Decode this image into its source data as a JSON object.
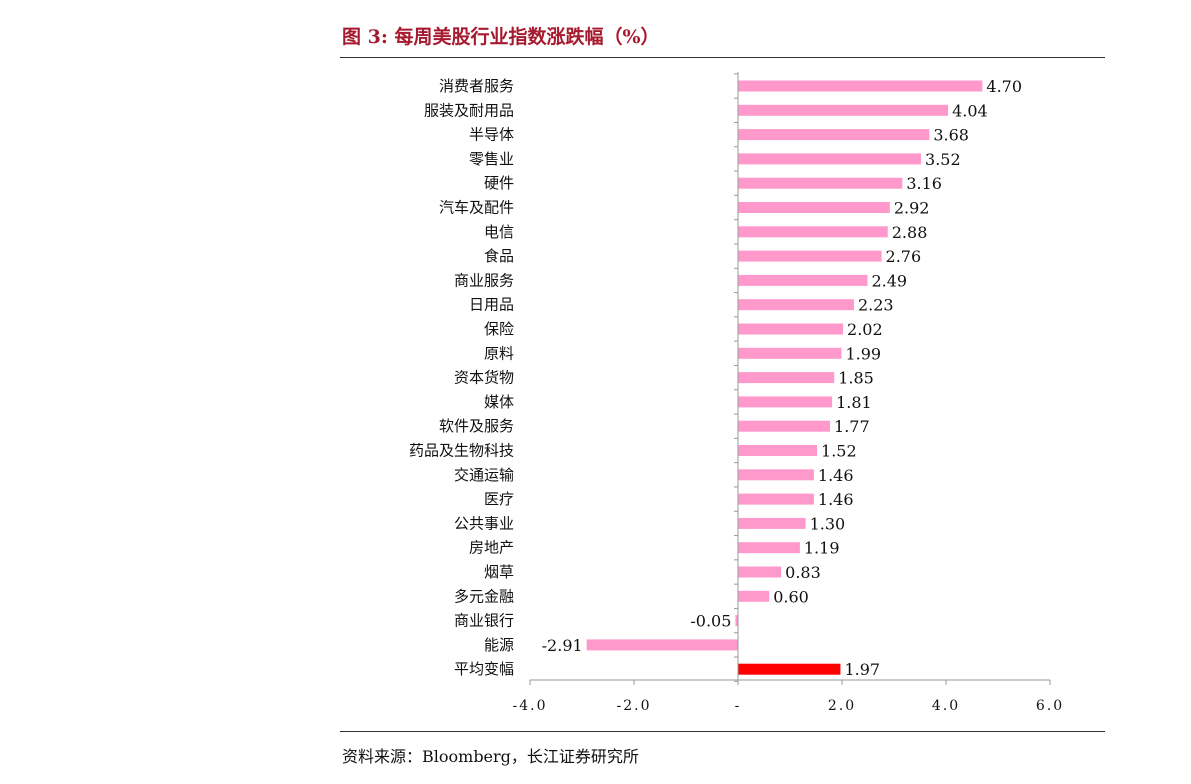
{
  "title": "图 3:  每周美股行业指数涨跌幅（%）",
  "source": "资料来源：Bloomberg，长江证券研究所",
  "chart_data": {
    "type": "bar",
    "orientation": "horizontal",
    "title": "图 3:  每周美股行业指数涨跌幅（%）",
    "xlim": [
      -4.0,
      6.0
    ],
    "x_ticks": [
      -4.0,
      -2.0,
      0,
      2.0,
      4.0,
      6.0
    ],
    "x_tick_labels": [
      "-4.0",
      "-2.0",
      "-",
      "2.0",
      "4.0",
      "6.0"
    ],
    "categories": [
      "消费者服务",
      "服装及耐用品",
      "半导体",
      "零售业",
      "硬件",
      "汽车及配件",
      "电信",
      "食品",
      "商业服务",
      "日用品",
      "保险",
      "原料",
      "资本货物",
      "媒体",
      "软件及服务",
      "药品及生物科技",
      "交通运输",
      "医疗",
      "公共事业",
      "房地产",
      "烟草",
      "多元金融",
      "商业银行",
      "能源",
      "平均变幅"
    ],
    "values": [
      4.7,
      4.04,
      3.68,
      3.52,
      3.16,
      2.92,
      2.88,
      2.76,
      2.49,
      2.23,
      2.02,
      1.99,
      1.85,
      1.81,
      1.77,
      1.52,
      1.46,
      1.46,
      1.3,
      1.19,
      0.83,
      0.6,
      -0.05,
      -2.91,
      1.97
    ],
    "value_labels": [
      "4.70",
      "4.04",
      "3.68",
      "3.52",
      "3.16",
      "2.92",
      "2.88",
      "2.76",
      "2.49",
      "2.23",
      "2.02",
      "1.99",
      "1.85",
      "1.81",
      "1.77",
      "1.52",
      "1.46",
      "1.46",
      "1.30",
      "1.19",
      "0.83",
      "0.60",
      "-0.05",
      "-2.91",
      "1.97"
    ],
    "colors": {
      "default": "#ff99cc",
      "highlight": "#ff0000"
    },
    "highlight_category": "平均变幅",
    "grid": false,
    "legend": "none"
  }
}
